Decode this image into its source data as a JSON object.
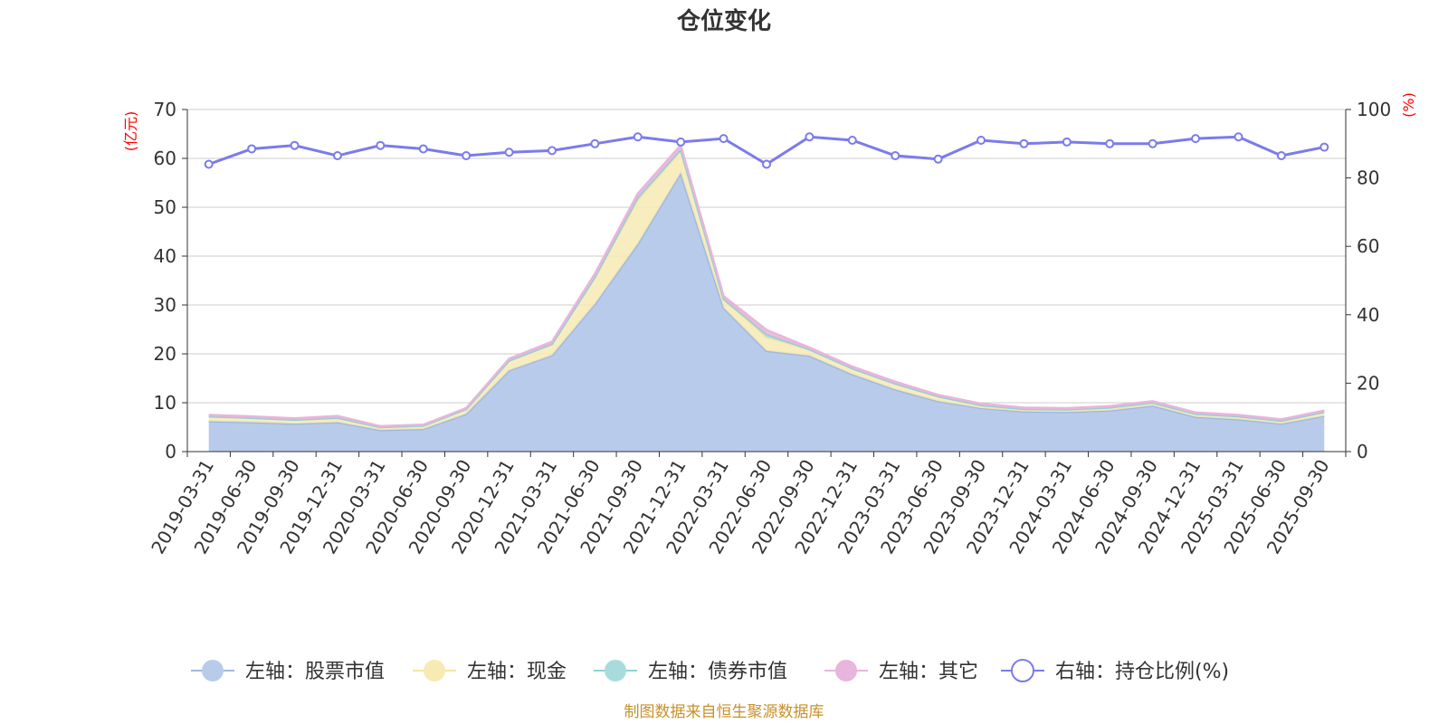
{
  "chart_data": {
    "type": "area",
    "title": "仓位变化",
    "left_axis": {
      "unit_label": "(亿元)",
      "ylim": [
        0,
        70
      ],
      "ticks": [
        0,
        10,
        20,
        30,
        40,
        50,
        60,
        70
      ]
    },
    "right_axis": {
      "unit_label": "(%)",
      "ylim": [
        0,
        100
      ],
      "ticks": [
        0,
        20,
        40,
        60,
        80,
        100
      ]
    },
    "categories": [
      "2019-03-31",
      "2019-06-30",
      "2019-09-30",
      "2019-12-31",
      "2020-03-31",
      "2020-06-30",
      "2020-09-30",
      "2020-12-31",
      "2021-03-31",
      "2021-06-30",
      "2021-09-30",
      "2021-12-31",
      "2022-03-31",
      "2022-06-30",
      "2022-09-30",
      "2022-12-31",
      "2023-03-31",
      "2023-06-30",
      "2023-09-30",
      "2023-12-31",
      "2024-03-31",
      "2024-06-30",
      "2024-09-30",
      "2024-12-31",
      "2025-03-31",
      "2025-06-30",
      "2025-09-30"
    ],
    "stacked_series": [
      {
        "name": "左轴：股票市值",
        "color": "#9db7e0",
        "fill": "#b8cbea",
        "values": [
          6.2,
          6.0,
          5.7,
          6.0,
          4.4,
          4.6,
          7.7,
          16.6,
          19.7,
          30.2,
          42.5,
          57.0,
          29.4,
          20.6,
          19.6,
          15.8,
          12.7,
          10.3,
          8.9,
          8.2,
          8.1,
          8.4,
          9.4,
          7.1,
          6.6,
          5.7,
          7.3
        ]
      },
      {
        "name": "左轴：现金",
        "color": "#f5e6a1",
        "fill": "#f7eab4",
        "values": [
          1.0,
          0.9,
          0.8,
          0.9,
          0.6,
          0.7,
          1.0,
          2.0,
          2.3,
          5.5,
          9.0,
          4.5,
          1.8,
          2.8,
          1.3,
          1.2,
          1.2,
          1.0,
          0.6,
          0.5,
          0.5,
          0.6,
          0.6,
          0.6,
          0.6,
          0.6,
          0.8
        ]
      },
      {
        "name": "左轴：债券市值",
        "color": "#90d2d2",
        "fill": "#a8dcdc",
        "values": [
          0.0,
          0.0,
          0.0,
          0.0,
          0.0,
          0.0,
          0.0,
          0.0,
          0.0,
          0.0,
          0.5,
          0.3,
          0.0,
          0.6,
          0.0,
          0.0,
          0.0,
          0.0,
          0.0,
          0.0,
          0.0,
          0.0,
          0.0,
          0.0,
          0.0,
          0.0,
          0.0
        ]
      },
      {
        "name": "左轴：其它",
        "color": "#e8b5dc",
        "fill": "#e8b5dc",
        "values": [
          0.3,
          0.3,
          0.3,
          0.4,
          0.2,
          0.2,
          0.2,
          0.4,
          0.5,
          0.7,
          0.8,
          0.9,
          0.6,
          0.9,
          0.4,
          0.4,
          0.4,
          0.3,
          0.3,
          0.3,
          0.3,
          0.3,
          0.3,
          0.3,
          0.3,
          0.3,
          0.3
        ]
      }
    ],
    "line_series": {
      "name": "右轴：持仓比例(%)",
      "color": "#7b7bec",
      "values": [
        84.0,
        88.5,
        89.5,
        86.5,
        89.5,
        88.5,
        86.5,
        87.5,
        88.0,
        90.0,
        92.0,
        90.5,
        91.5,
        84.0,
        92.0,
        91.0,
        86.5,
        85.5,
        91.0,
        90.0,
        90.5,
        90.0,
        90.0,
        91.5,
        92.0,
        86.5,
        89.0
      ]
    },
    "grid": true,
    "legend_position": "bottom"
  },
  "source_note": "制图数据来自恒生聚源数据库"
}
